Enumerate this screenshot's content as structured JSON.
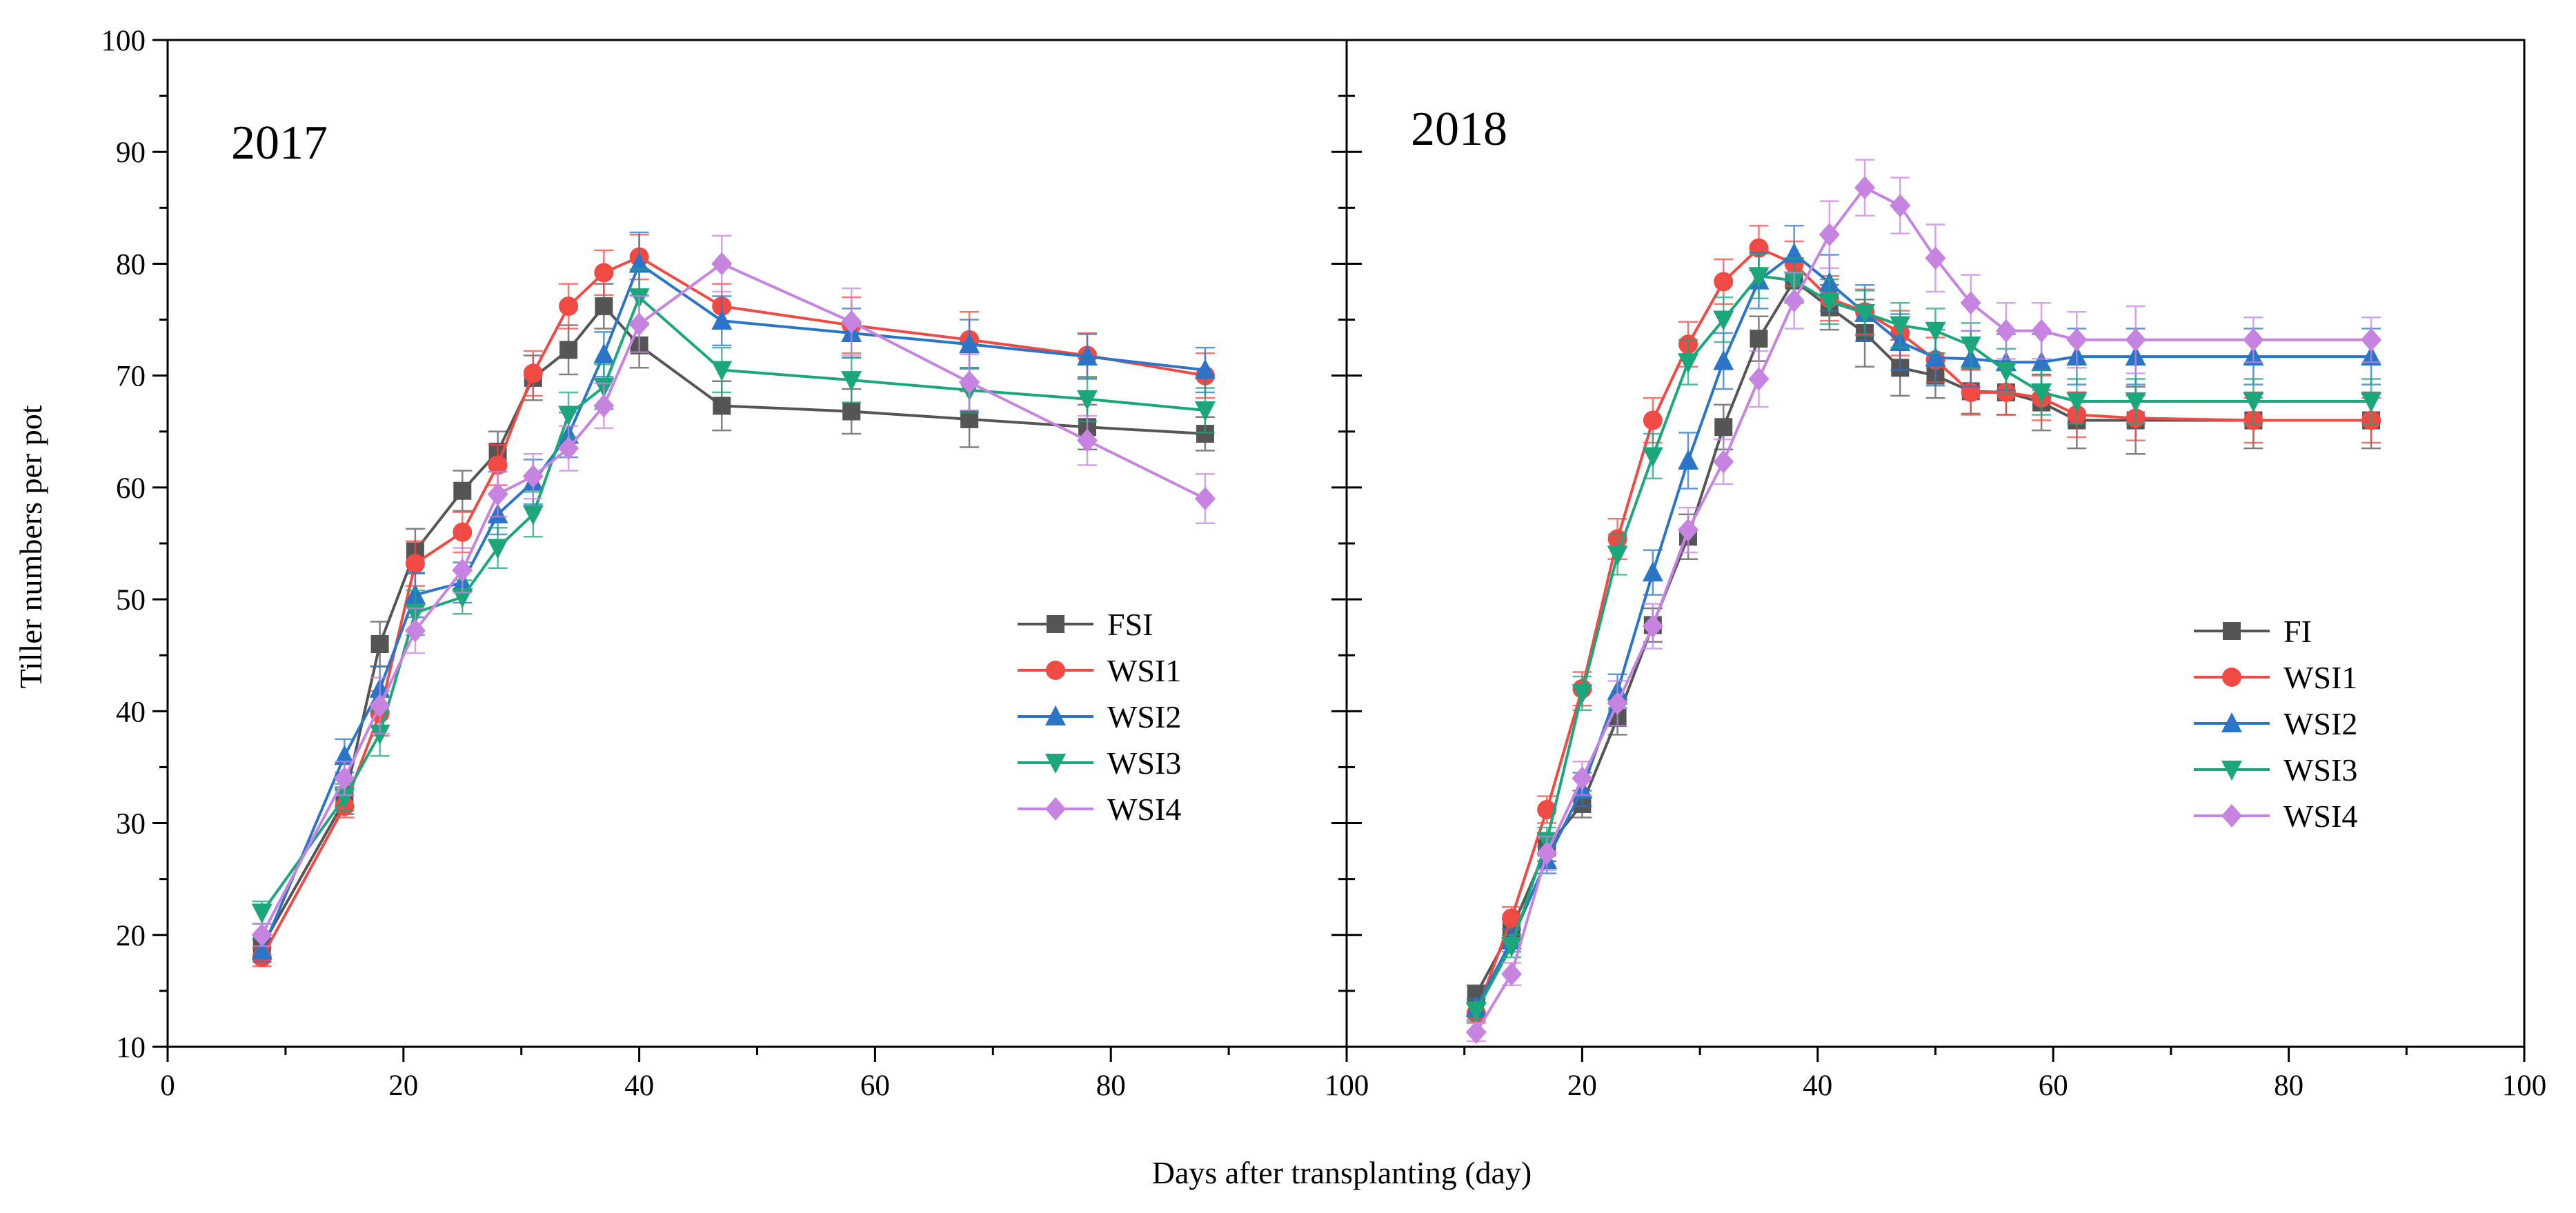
{
  "figure": {
    "xlabel": "Days after  transplanting (day)",
    "ylabel": "Tiller numbers per pot"
  },
  "chart_data": [
    {
      "type": "line",
      "title": "2017",
      "xlim": [
        0,
        100
      ],
      "ylim": [
        10,
        100
      ],
      "xticks": [
        0,
        20,
        40,
        60,
        80,
        100
      ],
      "yticks": [
        10,
        20,
        30,
        40,
        50,
        60,
        70,
        80,
        90,
        100
      ],
      "legend_position": "right-middle",
      "x": [
        8,
        15,
        18,
        21,
        25,
        28,
        31,
        34,
        37,
        40,
        47,
        58,
        68,
        78,
        88
      ],
      "series": [
        {
          "name": "FSI",
          "color": "#555555",
          "marker": "square",
          "values": [
            19.0,
            32.0,
            46.0,
            54.3,
            59.7,
            63.2,
            69.8,
            72.3,
            76.2,
            72.7,
            67.3,
            66.8,
            66.1,
            65.4,
            64.8
          ],
          "errors": [
            1.0,
            1.2,
            2.0,
            2.0,
            1.8,
            1.8,
            2.0,
            2.2,
            2.0,
            2.0,
            2.2,
            2.0,
            2.5,
            2.0,
            1.5
          ]
        },
        {
          "name": "WSI1",
          "color": "#f04a45",
          "marker": "circle",
          "values": [
            18.0,
            31.5,
            39.8,
            53.2,
            56.0,
            62.0,
            70.2,
            76.2,
            79.2,
            80.6,
            76.2,
            74.5,
            73.2,
            71.8,
            70.0
          ],
          "errors": [
            0.8,
            1.0,
            2.0,
            2.0,
            1.8,
            1.8,
            2.0,
            2.0,
            2.0,
            2.0,
            2.0,
            2.5,
            2.5,
            2.0,
            2.0
          ]
        },
        {
          "name": "WSI2",
          "color": "#2b75c8",
          "marker": "triangle-up",
          "values": [
            18.6,
            36.0,
            42.0,
            50.4,
            51.5,
            57.6,
            60.5,
            64.7,
            71.9,
            80.0,
            74.9,
            73.8,
            72.8,
            71.7,
            70.5
          ],
          "errors": [
            1.0,
            1.5,
            2.0,
            2.0,
            1.8,
            1.8,
            2.0,
            2.0,
            2.0,
            2.8,
            2.2,
            2.2,
            2.2,
            2.0,
            2.0
          ]
        },
        {
          "name": "WSI3",
          "color": "#1ba67b",
          "marker": "triangle-down",
          "values": [
            22.0,
            32.3,
            38.0,
            48.8,
            50.2,
            54.6,
            57.6,
            66.5,
            69.0,
            77.0,
            70.5,
            69.6,
            68.7,
            67.9,
            66.9
          ],
          "errors": [
            1.0,
            1.2,
            2.0,
            2.0,
            1.5,
            1.8,
            2.0,
            2.0,
            2.0,
            2.5,
            2.0,
            2.0,
            2.0,
            2.0,
            2.0
          ]
        },
        {
          "name": "WSI4",
          "color": "#c684e0",
          "marker": "diamond",
          "values": [
            20.0,
            34.0,
            40.5,
            47.2,
            52.6,
            59.4,
            61.0,
            63.5,
            67.3,
            74.6,
            80.0,
            74.8,
            69.4,
            64.2,
            59.0
          ],
          "errors": [
            1.0,
            1.5,
            2.5,
            2.0,
            2.0,
            2.0,
            2.0,
            2.0,
            2.0,
            2.5,
            2.5,
            3.0,
            2.5,
            2.2,
            2.2
          ]
        }
      ]
    },
    {
      "type": "line",
      "title": "2018",
      "xlim": [
        0,
        100
      ],
      "ylim": [
        10,
        100
      ],
      "xticks": [
        0,
        20,
        40,
        60,
        80,
        100
      ],
      "yticks": [
        10,
        20,
        30,
        40,
        50,
        60,
        70,
        80,
        90,
        100
      ],
      "legend_position": "right-middle",
      "x": [
        11,
        14,
        17,
        20,
        23,
        26,
        29,
        32,
        35,
        38,
        41,
        44,
        47,
        50,
        53,
        56,
        59,
        62,
        67,
        77,
        87
      ],
      "series": [
        {
          "name": "FI",
          "color": "#555555",
          "marker": "square",
          "values": [
            14.7,
            20.5,
            27.8,
            31.7,
            39.4,
            47.7,
            55.6,
            65.4,
            73.3,
            78.5,
            76.1,
            73.8,
            70.7,
            70.0,
            68.6,
            68.5,
            67.6,
            66.0,
            66.0,
            66.0,
            66.0
          ],
          "errors": [
            0.8,
            1.0,
            1.2,
            1.2,
            1.5,
            1.5,
            2.0,
            2.0,
            2.0,
            2.0,
            2.0,
            3.0,
            2.5,
            2.0,
            2.0,
            2.0,
            2.5,
            2.5,
            3.0,
            2.5,
            2.5
          ]
        },
        {
          "name": "WSI1",
          "color": "#f04a45",
          "marker": "circle",
          "values": [
            13.0,
            21.5,
            31.2,
            42.0,
            55.4,
            66.0,
            72.8,
            78.4,
            81.4,
            80.0,
            76.9,
            75.7,
            73.8,
            71.4,
            68.5,
            68.5,
            68.0,
            66.5,
            66.2,
            66.0,
            66.0
          ],
          "errors": [
            0.8,
            1.0,
            1.2,
            1.5,
            1.8,
            2.0,
            2.0,
            2.0,
            2.0,
            2.0,
            2.0,
            2.0,
            2.0,
            2.0,
            2.0,
            2.0,
            2.0,
            2.0,
            2.0,
            2.0,
            2.0
          ]
        },
        {
          "name": "WSI2",
          "color": "#2b75c8",
          "marker": "triangle-up",
          "values": [
            13.5,
            19.5,
            26.7,
            33.0,
            41.8,
            52.4,
            62.4,
            71.3,
            78.5,
            80.9,
            78.3,
            75.6,
            73.0,
            71.6,
            71.5,
            71.2,
            71.2,
            71.7,
            71.7,
            71.7,
            71.7
          ],
          "errors": [
            0.8,
            1.0,
            1.2,
            1.5,
            1.5,
            2.0,
            2.5,
            2.5,
            2.5,
            2.5,
            2.5,
            2.5,
            2.5,
            2.5,
            2.5,
            2.5,
            2.5,
            2.5,
            2.5,
            2.5,
            2.5
          ]
        },
        {
          "name": "WSI3",
          "color": "#1ba67b",
          "marker": "triangle-down",
          "values": [
            13.2,
            19.0,
            28.4,
            41.6,
            54.0,
            62.8,
            71.2,
            75.0,
            78.9,
            78.5,
            76.6,
            75.6,
            74.5,
            74.0,
            72.7,
            70.4,
            68.5,
            67.7,
            67.7,
            67.7,
            67.7
          ],
          "errors": [
            0.8,
            1.0,
            1.2,
            1.5,
            1.8,
            2.0,
            2.0,
            2.0,
            2.0,
            2.0,
            2.0,
            2.0,
            2.0,
            2.0,
            2.0,
            2.0,
            2.0,
            2.0,
            2.0,
            2.0,
            2.0
          ]
        },
        {
          "name": "WSI4",
          "color": "#c684e0",
          "marker": "diamond",
          "values": [
            11.3,
            16.5,
            27.3,
            34.0,
            40.7,
            47.6,
            56.2,
            62.3,
            69.7,
            76.7,
            82.6,
            86.8,
            85.2,
            80.5,
            76.5,
            74.0,
            74.0,
            73.2,
            73.2,
            73.2,
            73.2
          ],
          "errors": [
            0.8,
            1.0,
            1.5,
            1.5,
            2.0,
            2.0,
            2.0,
            2.0,
            2.5,
            2.5,
            3.0,
            2.5,
            2.5,
            3.0,
            2.5,
            2.5,
            2.5,
            2.5,
            3.0,
            2.0,
            2.0
          ]
        }
      ]
    }
  ]
}
